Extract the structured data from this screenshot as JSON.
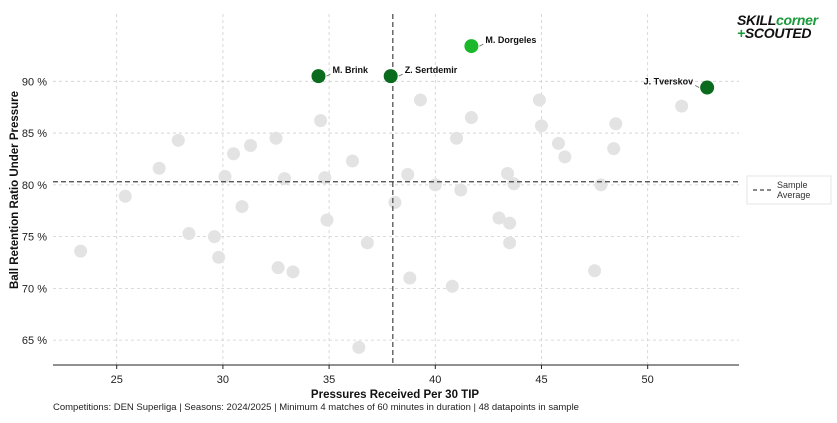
{
  "brand": {
    "part1": "SKILL",
    "part2": "corner",
    "part3_symbol": "+",
    "part4": "SCOUTED"
  },
  "colors": {
    "highlight_dark": "#0a6b1e",
    "highlight_bright": "#1cb82c",
    "background_point": "#e3e3e3",
    "grid": "#cfcfcf",
    "average_line": "#444444"
  },
  "footer": "Competitions: DEN Superliga | Seasons: 2024/2025 | Minimum 4 matches of 60 minutes in duration | 48 datapoints in sample",
  "chart_data": {
    "type": "scatter",
    "xlabel": "Pressures Received Per 30 TIP",
    "ylabel": "Ball Retention Ratio Under Pressure",
    "xlim": [
      22.0,
      54.3
    ],
    "ylim": [
      62.6,
      96.5
    ],
    "xticks": [
      25,
      30,
      35,
      40,
      45,
      50
    ],
    "yticks": [
      65,
      70,
      75,
      80,
      85,
      90
    ],
    "ytick_labels": [
      "65 %",
      "70 %",
      "75 %",
      "80 %",
      "85 %",
      "90 %"
    ],
    "grid": true,
    "average": {
      "x": 38.0,
      "y": 80.3
    },
    "legend": {
      "entries": [
        "Sample Average"
      ],
      "position": "right"
    },
    "highlighted": [
      {
        "name": "M. Dorgeles",
        "x": 41.7,
        "y": 93.4,
        "color": "#1cb82c"
      },
      {
        "name": "M. Brink",
        "x": 34.5,
        "y": 90.5,
        "color": "#0a6b1e"
      },
      {
        "name": "Z. Sertdemir",
        "x": 37.9,
        "y": 90.5,
        "color": "#0a6b1e"
      },
      {
        "name": "J. Tverskov",
        "x": 52.8,
        "y": 89.4,
        "color": "#0a6b1e"
      }
    ],
    "points": [
      [
        23.3,
        73.6
      ],
      [
        25.4,
        78.9
      ],
      [
        27.0,
        81.6
      ],
      [
        27.9,
        84.3
      ],
      [
        28.4,
        75.3
      ],
      [
        29.6,
        75.0
      ],
      [
        29.8,
        73.0
      ],
      [
        30.1,
        80.8
      ],
      [
        30.5,
        83.0
      ],
      [
        30.9,
        77.9
      ],
      [
        31.3,
        83.8
      ],
      [
        32.5,
        84.5
      ],
      [
        32.6,
        72.0
      ],
      [
        32.9,
        80.6
      ],
      [
        33.3,
        71.6
      ],
      [
        34.6,
        86.2
      ],
      [
        34.8,
        80.7
      ],
      [
        34.9,
        76.6
      ],
      [
        36.1,
        82.3
      ],
      [
        36.4,
        64.3
      ],
      [
        36.8,
        74.4
      ],
      [
        38.1,
        78.3
      ],
      [
        38.7,
        81.0
      ],
      [
        38.8,
        71.0
      ],
      [
        39.3,
        88.2
      ],
      [
        40.0,
        80.0
      ],
      [
        40.8,
        70.2
      ],
      [
        41.0,
        84.5
      ],
      [
        41.2,
        79.5
      ],
      [
        41.7,
        86.5
      ],
      [
        43.0,
        76.8
      ],
      [
        43.4,
        81.1
      ],
      [
        43.5,
        76.3
      ],
      [
        43.5,
        74.4
      ],
      [
        43.7,
        80.1
      ],
      [
        44.9,
        88.2
      ],
      [
        45.0,
        85.7
      ],
      [
        45.8,
        84.0
      ],
      [
        46.1,
        82.7
      ],
      [
        47.5,
        71.7
      ],
      [
        47.8,
        80.0
      ],
      [
        48.4,
        83.5
      ],
      [
        48.5,
        85.9
      ],
      [
        51.6,
        87.6
      ]
    ]
  }
}
